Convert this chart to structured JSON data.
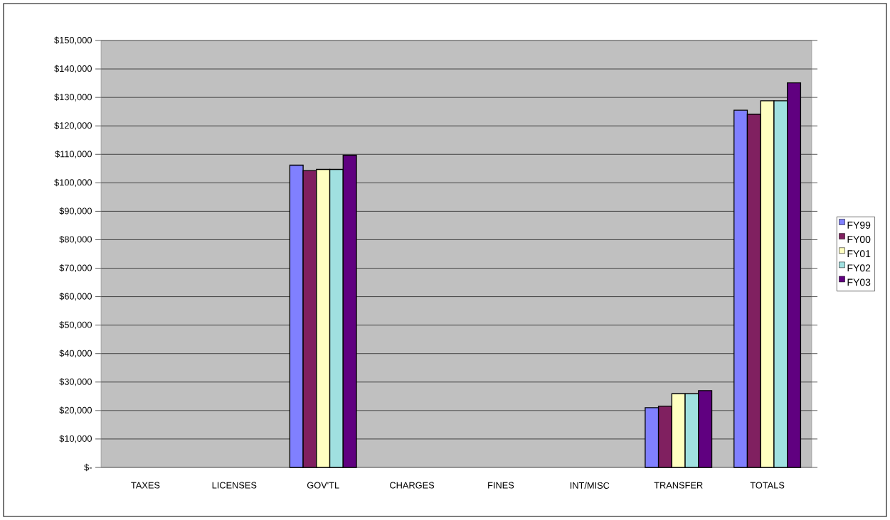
{
  "chart_data": {
    "type": "bar",
    "categories": [
      "TAXES",
      "LICENSES",
      "GOV'TL",
      "CHARGES",
      "FINES",
      "INT/MISC",
      "TRANSFER",
      "TOTALS"
    ],
    "series": [
      {
        "name": "FY99",
        "color": "#8080ff",
        "values": [
          null,
          null,
          106200,
          null,
          null,
          null,
          21000,
          125500
        ]
      },
      {
        "name": "FY00",
        "color": "#802060",
        "values": [
          null,
          null,
          104300,
          null,
          null,
          null,
          21500,
          124100
        ]
      },
      {
        "name": "FY01",
        "color": "#ffffc0",
        "values": [
          null,
          null,
          104700,
          null,
          null,
          null,
          25900,
          128800
        ]
      },
      {
        "name": "FY02",
        "color": "#a0e0e0",
        "values": [
          null,
          null,
          104700,
          null,
          null,
          null,
          25900,
          128800
        ]
      },
      {
        "name": "FY03",
        "color": "#600080",
        "values": [
          null,
          null,
          109700,
          null,
          null,
          null,
          27000,
          135100
        ]
      }
    ],
    "ylim": [
      0,
      150000
    ],
    "yticks": [
      {
        "value": 0,
        "label": "$-"
      },
      {
        "value": 10000,
        "label": "$10,000"
      },
      {
        "value": 20000,
        "label": "$20,000"
      },
      {
        "value": 30000,
        "label": "$30,000"
      },
      {
        "value": 40000,
        "label": "$40,000"
      },
      {
        "value": 50000,
        "label": "$50,000"
      },
      {
        "value": 60000,
        "label": "$60,000"
      },
      {
        "value": 70000,
        "label": "$70,000"
      },
      {
        "value": 80000,
        "label": "$80,000"
      },
      {
        "value": 90000,
        "label": "$90,000"
      },
      {
        "value": 100000,
        "label": "$100,000"
      },
      {
        "value": 110000,
        "label": "$110,000"
      },
      {
        "value": 120000,
        "label": "$120,000"
      },
      {
        "value": 130000,
        "label": "$130,000"
      },
      {
        "value": 140000,
        "label": "$140,000"
      },
      {
        "value": 150000,
        "label": "$150,000"
      }
    ],
    "grid": "y",
    "legend": "right"
  }
}
